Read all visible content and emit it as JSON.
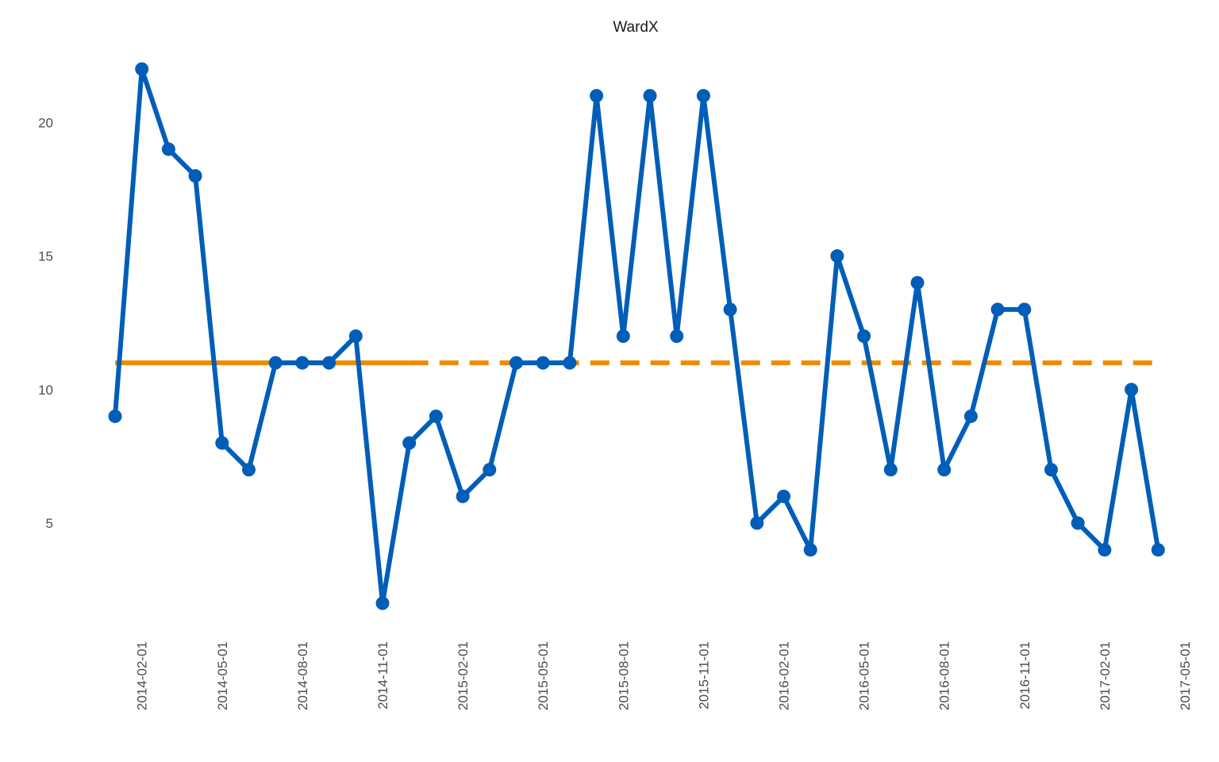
{
  "chart_data": {
    "type": "line",
    "title": "WardX",
    "xlabel": "",
    "ylabel": "",
    "ylim": [
      1,
      23
    ],
    "xlim": [
      "2014-01-01",
      "2017-05-01"
    ],
    "y_ticks": [
      5,
      10,
      15,
      20
    ],
    "x_ticks": [
      "2014-02-01",
      "2014-05-01",
      "2014-08-01",
      "2014-11-01",
      "2015-02-01",
      "2015-05-01",
      "2015-08-01",
      "2015-11-01",
      "2016-02-01",
      "2016-05-01",
      "2016-08-01",
      "2016-11-01",
      "2017-02-01",
      "2017-05-01"
    ],
    "grid": false,
    "legend": "none",
    "series": [
      {
        "color": "#005EB8",
        "x": [
          "2014-01-01",
          "2014-02-01",
          "2014-03-01",
          "2014-04-01",
          "2014-05-01",
          "2014-06-01",
          "2014-07-01",
          "2014-08-01",
          "2014-09-01",
          "2014-10-01",
          "2014-11-01",
          "2014-12-01",
          "2015-01-01",
          "2015-02-01",
          "2015-03-01",
          "2015-04-01",
          "2015-05-01",
          "2015-06-01",
          "2015-07-01",
          "2015-08-01",
          "2015-09-01",
          "2015-10-01",
          "2015-11-01",
          "2015-12-01",
          "2016-01-01",
          "2016-02-01",
          "2016-03-01",
          "2016-04-01",
          "2016-05-01",
          "2016-06-01",
          "2016-07-01",
          "2016-08-01",
          "2016-09-01",
          "2016-10-01",
          "2016-11-01",
          "2016-12-01",
          "2017-01-01",
          "2017-02-01",
          "2017-03-01",
          "2017-04-01"
        ],
        "values": [
          9,
          22,
          19,
          18,
          8,
          7,
          11,
          11,
          11,
          12,
          2,
          8,
          9,
          6,
          7,
          11,
          11,
          11,
          21,
          12,
          21,
          12,
          21,
          13,
          5,
          6,
          4,
          15,
          12,
          7,
          14,
          7,
          9,
          13,
          13,
          7,
          5,
          4,
          10,
          4
        ]
      },
      {
        "color": "#ED8B00",
        "style": "solid",
        "x": [
          "2014-01-01",
          "2014-12-01"
        ],
        "values": [
          11,
          11
        ]
      },
      {
        "color": "#ED8B00",
        "style": "dashed",
        "x": [
          "2014-12-01",
          "2017-04-01"
        ],
        "values": [
          11,
          11
        ]
      }
    ]
  }
}
